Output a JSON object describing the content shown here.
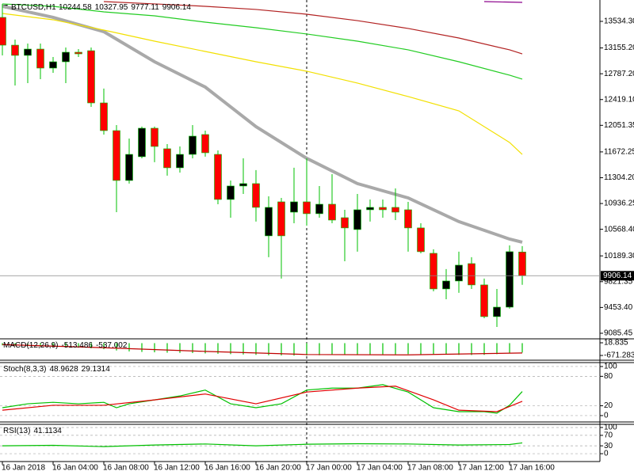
{
  "chart_data": [
    {
      "type": "candlestick",
      "title": "BTCUSD,H1",
      "open": [
        13591,
        13195,
        13049,
        13139,
        12868,
        12958,
        13094,
        13116,
        12371,
        11976,
        11265,
        11604,
        12010,
        11717,
        11446,
        11637,
        11920,
        11637,
        10994,
        11186,
        11220,
        10475,
        10960,
        10813,
        10960,
        10791,
        10926,
        10734,
        10565,
        10847,
        10881,
        10881,
        10847,
        10588,
        10226,
        9718,
        9831,
        10079,
        9775,
        9323,
        9458,
        10244.58
      ],
      "high": [
        13783,
        13275,
        13218,
        13218,
        13026,
        13162,
        13139,
        13162,
        12575,
        12055,
        11863,
        12033,
        12033,
        11784,
        11750,
        12055,
        11976,
        11694,
        11265,
        11581,
        11412,
        11039,
        11016,
        11446,
        11581,
        11186,
        11355,
        10847,
        11073,
        10994,
        10994,
        11152,
        10960,
        10655,
        10283,
        10001,
        10249,
        10170,
        9865,
        9718,
        10339,
        10327.95
      ],
      "low": [
        13049,
        12620,
        12654,
        12710,
        12800,
        12654,
        13026,
        12315,
        11920,
        10813,
        11220,
        11581,
        11525,
        11333,
        11378,
        11581,
        11604,
        10926,
        10734,
        11073,
        10678,
        10170,
        9865,
        10655,
        10621,
        10734,
        10655,
        10113,
        10249,
        10678,
        10734,
        10700,
        10249,
        10226,
        9684,
        9571,
        9662,
        9718,
        9300,
        9176,
        9436,
        9777.11
      ],
      "close": [
        13195,
        13049,
        13139,
        12868,
        12958,
        13094,
        13071,
        12371,
        11976,
        11265,
        11637,
        12010,
        11750,
        11446,
        11637,
        11897,
        11660,
        10994,
        11186,
        11220,
        10881,
        10881,
        10475,
        10960,
        10791,
        10926,
        10700,
        10588,
        10847,
        10881,
        10847,
        10813,
        10588,
        10249,
        9718,
        9831,
        10057,
        9775,
        9323,
        9458,
        10249,
        9906.14
      ],
      "up_color": "#000000",
      "down_color": "#ff0000",
      "wick_color": "#00c000",
      "ylim": [
        9006,
        13839
      ],
      "yticks": [
        {
          "value": 13534.3,
          "label": "13534.30"
        },
        {
          "value": 13155.2,
          "label": "13155.20"
        },
        {
          "value": 12787.2,
          "label": "12787.20"
        },
        {
          "value": 12419.1,
          "label": "12419.10"
        },
        {
          "value": 12051.35,
          "label": "12051.35"
        },
        {
          "value": 11672.25,
          "label": "11672.25"
        },
        {
          "value": 11304.2,
          "label": "11304.20"
        },
        {
          "value": 10936.25,
          "label": "10936.25"
        },
        {
          "value": 10568.4,
          "label": "10568.40"
        },
        {
          "value": 10189.3,
          "label": "10189.30"
        },
        {
          "value": 9821.35,
          "label": "9821.35"
        },
        {
          "value": 9453.4,
          "label": "9453.40"
        },
        {
          "value": 9085.45,
          "label": "9085.45"
        }
      ],
      "xticks": [
        {
          "value": 0,
          "label": "16 Jan 2018"
        },
        {
          "value": 4,
          "label": "16 Jan 04:00"
        },
        {
          "value": 8,
          "label": "16 Jan 08:00"
        },
        {
          "value": 12,
          "label": "16 Jan 12:00"
        },
        {
          "value": 16,
          "label": "16 Jan 16:00"
        },
        {
          "value": 20,
          "label": "16 Jan 20:00"
        },
        {
          "value": 24,
          "label": "17 Jan 00:00"
        },
        {
          "value": 28,
          "label": "17 Jan 04:00"
        },
        {
          "value": 32,
          "label": "17 Jan 08:00"
        },
        {
          "value": 36,
          "label": "17 Jan 12:00"
        },
        {
          "value": 40,
          "label": "17 Jan 16:00"
        }
      ],
      "series": [
        {
          "color": "#a9a9a9",
          "x": [
            0,
            4,
            8,
            12,
            16,
            20,
            24,
            28,
            32,
            36,
            40,
            41
          ],
          "values": [
            13749,
            13591,
            13387,
            12958,
            12597,
            12033,
            11581,
            11220,
            11016,
            10678,
            10429,
            10384
          ]
        },
        {
          "color": "#f2e000",
          "x": [
            0,
            4,
            8,
            12,
            16,
            20,
            24,
            28,
            32,
            36,
            40,
            41
          ],
          "values": [
            13647,
            13557,
            13410,
            13252,
            13105,
            12958,
            12823,
            12654,
            12462,
            12258,
            11807,
            11637
          ]
        },
        {
          "color": "#22cc22",
          "x": [
            0,
            4,
            8,
            12,
            16,
            20,
            24,
            28,
            32,
            36,
            40,
            41
          ],
          "values": [
            13783,
            13749,
            13670,
            13613,
            13523,
            13444,
            13354,
            13252,
            13128,
            12958,
            12767,
            12710
          ]
        },
        {
          "color": "#b22222",
          "x": [
            8,
            12,
            16,
            20,
            24,
            28,
            32,
            36,
            40,
            41
          ],
          "values": [
            13816,
            13783,
            13749,
            13704,
            13636,
            13545,
            13433,
            13297,
            13128,
            13071
          ]
        },
        {
          "color": "#8b008b",
          "x": [
            38,
            41
          ],
          "values": [
            13816,
            13805
          ]
        }
      ]
    },
    {
      "type": "macd",
      "title": "MACD(12,26,9)",
      "ylim": [
        -930,
        234
      ],
      "yticks": [
        18.835,
        -671.283
      ],
      "series": [
        {
          "color": "#00c000",
          "values": [
            -120,
            -140,
            -160,
            -180,
            -200,
            -220,
            -240,
            -280,
            -330,
            -400,
            -450,
            -480,
            -500,
            -520,
            -530,
            -540,
            -560,
            -580,
            -600,
            -620,
            -640,
            -660,
            -670,
            -680,
            -670,
            -660,
            -650,
            -640,
            -630,
            -620,
            -610,
            -610,
            -600,
            -610,
            -620,
            -630,
            -640,
            -650,
            -640,
            -600,
            -560,
            -513.486
          ]
        },
        {
          "color": "#c00000",
          "x": [
            0,
            8,
            16,
            24,
            32,
            41
          ],
          "values": [
            -80,
            -250,
            -450,
            -620,
            -640,
            -537.002
          ]
        }
      ]
    },
    {
      "type": "line",
      "title": "Stoch(8,3,3)",
      "ylim": [
        -13,
        108
      ],
      "yticks": [
        100,
        80,
        20,
        0
      ],
      "grid": true,
      "series": [
        {
          "color": "#00c000",
          "x": [
            0,
            2,
            4,
            6,
            8,
            9,
            10,
            12,
            14,
            16,
            18,
            20,
            22,
            24,
            26,
            28,
            30,
            32,
            34,
            36,
            38,
            39,
            40,
            41
          ],
          "values": [
            16,
            24,
            27,
            24,
            27,
            16,
            24,
            32,
            40,
            52,
            24,
            16,
            24,
            52,
            56,
            56,
            63,
            48,
            16,
            8,
            8,
            5,
            21,
            48.9628
          ]
        },
        {
          "color": "#e00000",
          "x": [
            0,
            4,
            8,
            12,
            16,
            20,
            24,
            28,
            31,
            34,
            36,
            39,
            41
          ],
          "values": [
            11,
            21,
            21,
            32,
            44,
            24,
            48,
            56,
            60,
            32,
            11,
            8,
            29.1314
          ]
        }
      ]
    },
    {
      "type": "line",
      "title": "RSI(13)",
      "ylim": [
        -27,
        112
      ],
      "yticks": [
        100,
        70,
        30,
        0
      ],
      "grid": true,
      "series": [
        {
          "color": "#00c000",
          "x": [
            0,
            4,
            8,
            12,
            16,
            20,
            24,
            28,
            32,
            36,
            40,
            41
          ],
          "values": [
            30,
            32,
            27,
            33,
            37,
            30,
            36,
            38,
            37,
            33,
            35,
            41.1134
          ]
        }
      ]
    }
  ]
}
